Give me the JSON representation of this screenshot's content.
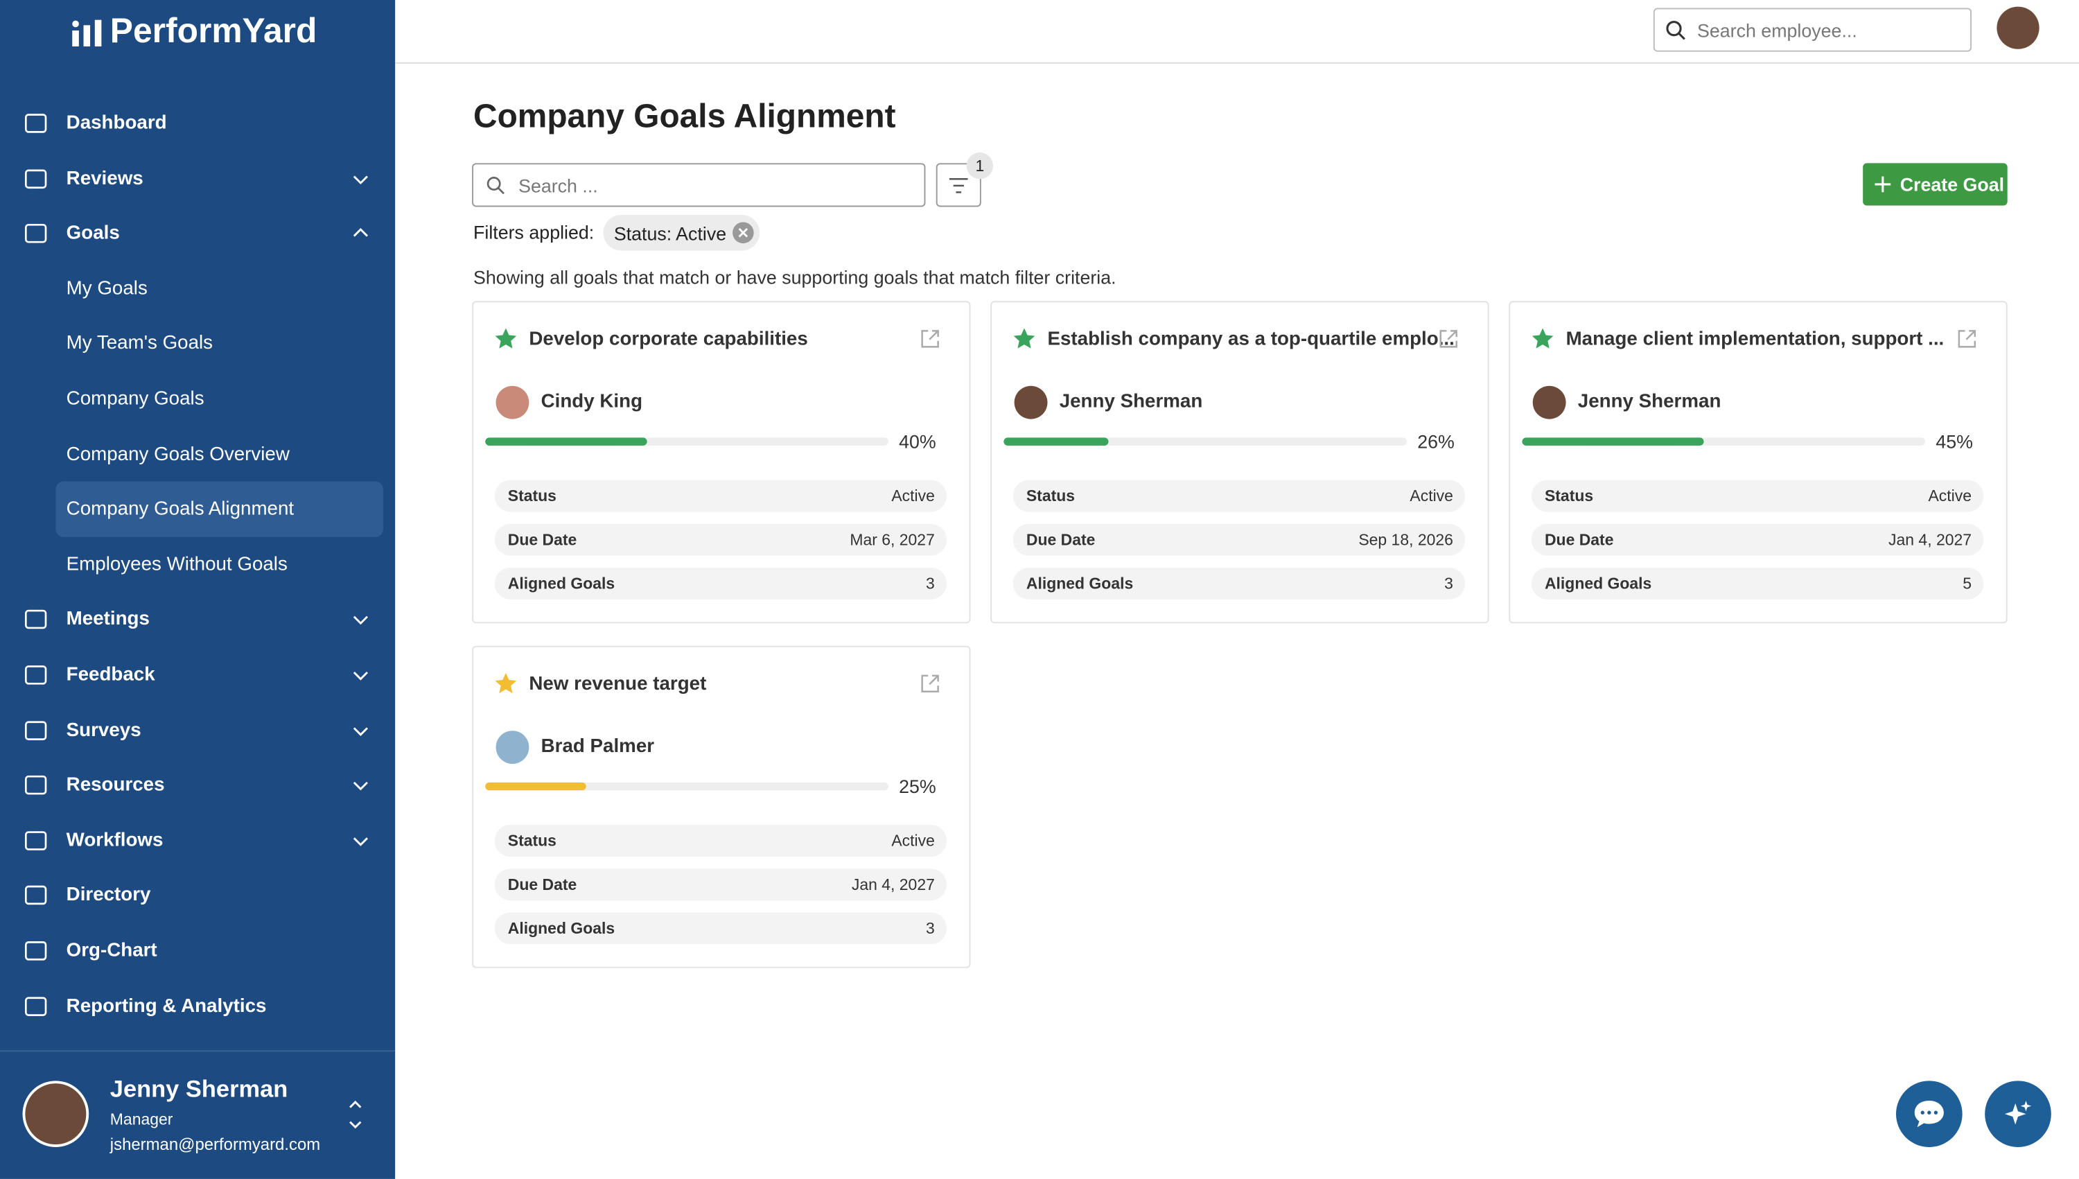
{
  "brand": "PerformYard",
  "nav": [
    {
      "label": "Dashboard"
    },
    {
      "label": "Reviews",
      "chevron": "down"
    },
    {
      "label": "Goals",
      "chevron": "up"
    },
    {
      "label": "My Goals",
      "sub": true
    },
    {
      "label": "My Team's Goals",
      "sub": true
    },
    {
      "label": "Company Goals",
      "sub": true
    },
    {
      "label": "Company Goals Overview",
      "sub": true
    },
    {
      "label": "Company Goals Alignment",
      "sub": true,
      "active": true
    },
    {
      "label": "Employees Without Goals",
      "sub": true
    },
    {
      "label": "Meetings",
      "chevron": "down"
    },
    {
      "label": "Feedback",
      "chevron": "down"
    },
    {
      "label": "Surveys",
      "chevron": "down"
    },
    {
      "label": "Resources",
      "chevron": "down"
    },
    {
      "label": "Workflows",
      "chevron": "down"
    },
    {
      "label": "Directory"
    },
    {
      "label": "Org-Chart"
    },
    {
      "label": "Reporting & Analytics"
    }
  ],
  "user": {
    "name": "Jenny Sherman",
    "role": "Manager",
    "email": "jsherman@performyard.com"
  },
  "header": {
    "search_placeholder": "Search employee..."
  },
  "page": {
    "title": "Company Goals Alignment",
    "search_placeholder": "Search ...",
    "filter_count": "1",
    "create_button": "Create Goal",
    "filters_label": "Filters applied:",
    "filter_chip": "Status: Active",
    "description": "Showing all goals that match or have supporting goals that match filter criteria."
  },
  "cards": [
    {
      "title": "Develop corporate capabilities",
      "owner": "Cindy King",
      "progress": {
        "value": 40,
        "label": "40%"
      },
      "color": "#3aa35c",
      "rows": [
        {
          "label": "Status",
          "value": "Active"
        },
        {
          "label": "Due Date",
          "value": "Mar 6, 2027"
        },
        {
          "label": "Aligned Goals",
          "value": 3
        }
      ]
    },
    {
      "title": "Establish company as a top-quartile emplo...",
      "owner": "Jenny Sherman",
      "progress": {
        "value": 26,
        "label": "26%"
      },
      "color": "#3aa35c",
      "rows": [
        {
          "label": "Status",
          "value": "Active"
        },
        {
          "label": "Due Date",
          "value": "Sep 18, 2026"
        },
        {
          "label": "Aligned Goals",
          "value": 3
        }
      ]
    },
    {
      "title": "Manage client implementation, support ...",
      "owner": "Jenny Sherman",
      "progress": {
        "value": 45,
        "label": "45%"
      },
      "color": "#3aa35c",
      "rows": [
        {
          "label": "Status",
          "value": "Active"
        },
        {
          "label": "Due Date",
          "value": "Jan 4, 2027"
        },
        {
          "label": "Aligned Goals",
          "value": 5
        }
      ]
    },
    {
      "title": "New revenue target",
      "owner": "Brad Palmer",
      "progress": {
        "value": 25,
        "label": "25%"
      },
      "color": "#f2bc33",
      "rows": [
        {
          "label": "Status",
          "value": "Active"
        },
        {
          "label": "Due Date",
          "value": "Jan 4, 2027"
        },
        {
          "label": "Aligned Goals",
          "value": 3
        }
      ]
    }
  ]
}
